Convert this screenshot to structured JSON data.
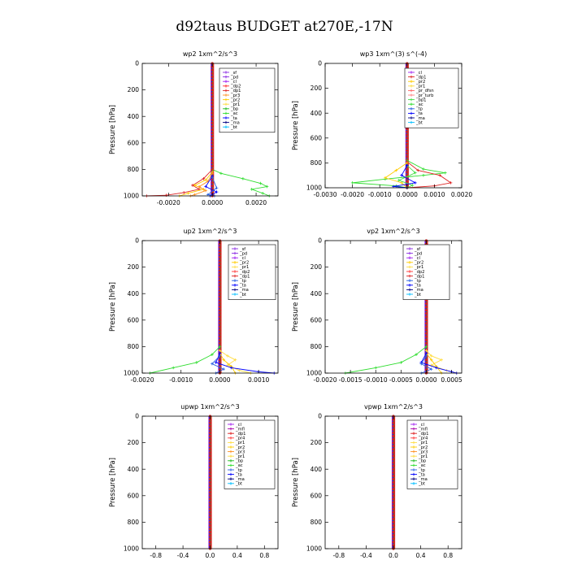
{
  "figure": {
    "title": "d92taus  BUDGET at270E,-17N"
  },
  "series_colors": {
    "_sf": "#8a2be2",
    "_pd": "#8a2be2",
    "_cl": "#a020f0",
    "_dp2": "#ff3030",
    "_dp1": "#dd2222",
    "_pr3": "#ff9020",
    "_pr2": "#ffcc00",
    "_pr1": "#ffdd44",
    "_bp": "#22bb22",
    "_ac": "#30dd30",
    "_ta": "#0000ff",
    "_tp": "#2a60e0",
    "_ma": "#000080",
    "_bt": "#00bfff",
    "_mfl": "#aa00aa",
    "_pr4": "#ff4040",
    "_pr_dfsn": "#ff6060",
    "_pr_turb": "#ff8080",
    "_bp1": "#44dd44"
  },
  "chart_data": [
    {
      "type": "line",
      "title": "wp2  1xm^2/s^3",
      "ylabel": "Pressure [hPa]",
      "xlim": [
        -0.0032,
        0.003
      ],
      "ylim": [
        1000,
        0
      ],
      "xticks": [
        -0.002,
        0.0,
        0.002
      ],
      "xtick_labels": [
        "-0.0020",
        "0.0000",
        "0.0020"
      ],
      "yticks": [
        0,
        200,
        400,
        600,
        800,
        1000
      ],
      "ytick_labels": [
        "0",
        "200",
        "400",
        "600",
        "800",
        "1000"
      ],
      "legend": [
        "_sf",
        "_pd",
        "_cl",
        "_dp2",
        "_dp1",
        "_pr3",
        "_pr2",
        "_pr1",
        "_bp",
        "_ac",
        "_ta",
        "_ma",
        "_bt"
      ],
      "legend_position": "top-right",
      "series": [
        {
          "name": "_ac",
          "points": [
            [
              0,
              800
            ],
            [
              0.0004,
              830
            ],
            [
              0.0014,
              870
            ],
            [
              0.0022,
              905
            ],
            [
              0.0025,
              930
            ],
            [
              0.0018,
              950
            ],
            [
              0.0023,
              980
            ],
            [
              0.0026,
              1000
            ]
          ]
        },
        {
          "name": "_dp1",
          "points": [
            [
              0,
              800
            ],
            [
              -0.0004,
              870
            ],
            [
              -0.0009,
              920
            ],
            [
              -0.0006,
              950
            ],
            [
              -0.0013,
              975
            ],
            [
              -0.0021,
              995
            ],
            [
              -0.003,
              1000
            ]
          ]
        },
        {
          "name": "_pr2",
          "points": [
            [
              0,
              820
            ],
            [
              -0.0003,
              880
            ],
            [
              -0.0008,
              920
            ],
            [
              -0.0004,
              950
            ],
            [
              -0.0011,
              980
            ],
            [
              -0.0015,
              1000
            ]
          ]
        },
        {
          "name": "_pr3",
          "points": [
            [
              0,
              830
            ],
            [
              -0.0002,
              890
            ],
            [
              -0.0006,
              930
            ],
            [
              -0.0003,
              960
            ],
            [
              -0.0008,
              990
            ],
            [
              -0.001,
              1000
            ]
          ]
        },
        {
          "name": "_ta",
          "points": [
            [
              0,
              850
            ],
            [
              -0.0003,
              930
            ],
            [
              0.0002,
              970
            ],
            [
              -0.0001,
              1000
            ]
          ]
        },
        {
          "name": "_tp",
          "points": [
            [
              0,
              860
            ],
            [
              0.0002,
              940
            ],
            [
              -0.0002,
              990
            ],
            [
              0.0001,
              1000
            ]
          ]
        }
      ]
    },
    {
      "type": "line",
      "title": "wp3  1xm^(3) s^(-4)",
      "ylabel": "Pressure [hPa]",
      "xlim": [
        -0.003,
        0.002
      ],
      "ylim": [
        1000,
        0
      ],
      "xticks": [
        -0.003,
        -0.002,
        -0.001,
        0.0,
        0.001,
        0.002
      ],
      "xtick_labels": [
        "-0.0030",
        "-0.0020",
        "-0.0010",
        "0.0000",
        "0.0010",
        "0.0020"
      ],
      "yticks": [
        0,
        200,
        400,
        600,
        800,
        1000
      ],
      "ytick_labels": [
        "0",
        "200",
        "400",
        "600",
        "800",
        "1000"
      ],
      "legend": [
        "_cl",
        "_dp1",
        "_pr2",
        "_pr1",
        "_pr_dfsn",
        "_pr_turb",
        "_bp1",
        "_ac",
        "_tp",
        "_ta",
        "_ma",
        "_bt"
      ],
      "legend_position": "top-right",
      "series": [
        {
          "name": "_ac",
          "points": [
            [
              0,
              780
            ],
            [
              0.0006,
              850
            ],
            [
              0.0014,
              880
            ],
            [
              0.0006,
              900
            ],
            [
              -0.0008,
              930
            ],
            [
              -0.002,
              960
            ],
            [
              -0.0004,
              985
            ],
            [
              0,
              1000
            ]
          ]
        },
        {
          "name": "_dp1",
          "points": [
            [
              0,
              790
            ],
            [
              0.0004,
              860
            ],
            [
              0.0012,
              900
            ],
            [
              0.0016,
              960
            ],
            [
              0.001,
              985
            ],
            [
              0,
              1000
            ]
          ]
        },
        {
          "name": "_pr2",
          "points": [
            [
              0,
              800
            ],
            [
              -0.0004,
              860
            ],
            [
              -0.0008,
              920
            ],
            [
              -0.0002,
              960
            ],
            [
              0,
              1000
            ]
          ]
        },
        {
          "name": "_bp1",
          "points": [
            [
              0,
              820
            ],
            [
              0.0003,
              880
            ],
            [
              -0.0003,
              940
            ],
            [
              0.0002,
              980
            ],
            [
              0,
              1000
            ]
          ]
        },
        {
          "name": "_ta",
          "points": [
            [
              0,
              820
            ],
            [
              -0.0002,
              900
            ],
            [
              0.0003,
              960
            ],
            [
              -0.0005,
              990
            ],
            [
              0,
              1000
            ]
          ]
        }
      ]
    },
    {
      "type": "line",
      "title": "up2  1xm^2/s^3",
      "ylabel": "Pressure [hPa]",
      "xlim": [
        -0.002,
        0.0015
      ],
      "ylim": [
        1000,
        0
      ],
      "xticks": [
        -0.002,
        -0.001,
        0.0,
        0.001
      ],
      "xtick_labels": [
        "-0.0020",
        "-0.0010",
        "0.0000",
        "0.0010"
      ],
      "yticks": [
        0,
        200,
        400,
        600,
        800,
        1000
      ],
      "ytick_labels": [
        "0",
        "200",
        "400",
        "600",
        "800",
        "1000"
      ],
      "legend": [
        "_sf",
        "_pd",
        "_cl",
        "_pr2",
        "_pr1",
        "_dp2",
        "_dp1",
        "_tp",
        "_ta",
        "_ma",
        "_bt"
      ],
      "legend_position": "top-right",
      "series": [
        {
          "name": "_ac",
          "points": [
            [
              0,
              800
            ],
            [
              -0.0002,
              860
            ],
            [
              -0.0006,
              920
            ],
            [
              -0.0012,
              960
            ],
            [
              -0.0018,
              1000
            ]
          ]
        },
        {
          "name": "_pr1",
          "points": [
            [
              0,
              830
            ],
            [
              0.0002,
              870
            ],
            [
              0.0004,
              900
            ],
            [
              0.0002,
              940
            ],
            [
              0.0005,
              980
            ],
            [
              0.0008,
              1000
            ]
          ]
        },
        {
          "name": "_pr2",
          "points": [
            [
              0,
              850
            ],
            [
              0.0001,
              900
            ],
            [
              0.0003,
              950
            ],
            [
              0.0004,
              1000
            ]
          ]
        },
        {
          "name": "_ta",
          "points": [
            [
              0,
              850
            ],
            [
              -0.0001,
              920
            ],
            [
              0.0003,
              960
            ],
            [
              0.001,
              990
            ],
            [
              0.0014,
              1000
            ]
          ]
        },
        {
          "name": "_tp",
          "points": [
            [
              0,
              870
            ],
            [
              -0.0002,
              930
            ],
            [
              0.0001,
              970
            ],
            [
              -0.0001,
              1000
            ]
          ]
        }
      ]
    },
    {
      "type": "line",
      "title": "vp2  1xm^2/s^3",
      "ylabel": "Pressure [hPa]",
      "xlim": [
        -0.002,
        0.0007
      ],
      "ylim": [
        1000,
        0
      ],
      "xticks": [
        -0.002,
        -0.0015,
        -0.001,
        -0.0005,
        0.0,
        0.0005
      ],
      "xtick_labels": [
        "-0.0020",
        "-0.0015",
        "-0.0010",
        "-0.0005",
        "0.0000",
        "0.0005"
      ],
      "yticks": [
        0,
        200,
        400,
        600,
        800,
        1000
      ],
      "ytick_labels": [
        "0",
        "200",
        "400",
        "600",
        "800",
        "1000"
      ],
      "legend": [
        "_sf",
        "_pd",
        "_cl",
        "_pr2",
        "_pr1",
        "_dp2",
        "_dp1",
        "_tp",
        "_ta",
        "_ma",
        "_bt"
      ],
      "legend_position": "top-right",
      "series": [
        {
          "name": "_ac",
          "points": [
            [
              0,
              800
            ],
            [
              -0.0002,
              860
            ],
            [
              -0.0005,
              920
            ],
            [
              -0.001,
              960
            ],
            [
              -0.0016,
              1000
            ]
          ]
        },
        {
          "name": "_pr1",
          "points": [
            [
              0,
              830
            ],
            [
              0.0001,
              870
            ],
            [
              0.0003,
              900
            ],
            [
              0.0001,
              940
            ],
            [
              0.0004,
              980
            ],
            [
              0.0006,
              1000
            ]
          ]
        },
        {
          "name": "_pr2",
          "points": [
            [
              0,
              850
            ],
            [
              0.0001,
              900
            ],
            [
              0.0002,
              950
            ],
            [
              0.0003,
              1000
            ]
          ]
        },
        {
          "name": "_ta",
          "points": [
            [
              0,
              850
            ],
            [
              -0.0001,
              920
            ],
            [
              0.0002,
              960
            ],
            [
              0.0005,
              990
            ],
            [
              0.0006,
              1000
            ]
          ]
        },
        {
          "name": "_tp",
          "points": [
            [
              0,
              870
            ],
            [
              -0.0001,
              930
            ],
            [
              0.0001,
              970
            ],
            [
              -0.0001,
              1000
            ]
          ]
        }
      ]
    },
    {
      "type": "line",
      "title": "upwp  1xm^2/s^3",
      "ylabel": "Pressure [hPa]",
      "xlim": [
        -1.0,
        1.0
      ],
      "ylim": [
        1000,
        0
      ],
      "xticks": [
        -0.8,
        -0.4,
        0.0,
        0.4,
        0.8
      ],
      "xtick_labels": [
        "-0.8",
        "-0.4",
        "0.0",
        "0.4",
        "0.8"
      ],
      "yticks": [
        0,
        200,
        400,
        600,
        800,
        1000
      ],
      "ytick_labels": [
        "0",
        "200",
        "400",
        "600",
        "800",
        "1000"
      ],
      "legend": [
        "_cl",
        "_mfl",
        "_dp1",
        "_pr4",
        "_pr1",
        "_pr2",
        "_pr3",
        "_pr1",
        "_bp",
        "_ac",
        "_tp",
        "_ta",
        "_ma",
        "_bt"
      ],
      "legend_position": "top-right",
      "series": []
    },
    {
      "type": "line",
      "title": "vpwp  1xm^2/s^3",
      "ylabel": "Pressure [hPa]",
      "xlim": [
        -1.0,
        1.0
      ],
      "ylim": [
        1000,
        0
      ],
      "xticks": [
        -0.8,
        -0.4,
        0.0,
        0.4,
        0.8
      ],
      "xtick_labels": [
        "-0.8",
        "-0.4",
        "0.0",
        "0.4",
        "0.8"
      ],
      "yticks": [
        0,
        200,
        400,
        600,
        800,
        1000
      ],
      "ytick_labels": [
        "0",
        "200",
        "400",
        "600",
        "800",
        "1000"
      ],
      "legend": [
        "_cl",
        "_mfl",
        "_dp1",
        "_pr4",
        "_pr1",
        "_pr2",
        "_pr3",
        "_pr1",
        "_bp",
        "_ac",
        "_tp",
        "_ta",
        "_ma",
        "_bt"
      ],
      "legend_position": "top-right",
      "series": []
    }
  ]
}
